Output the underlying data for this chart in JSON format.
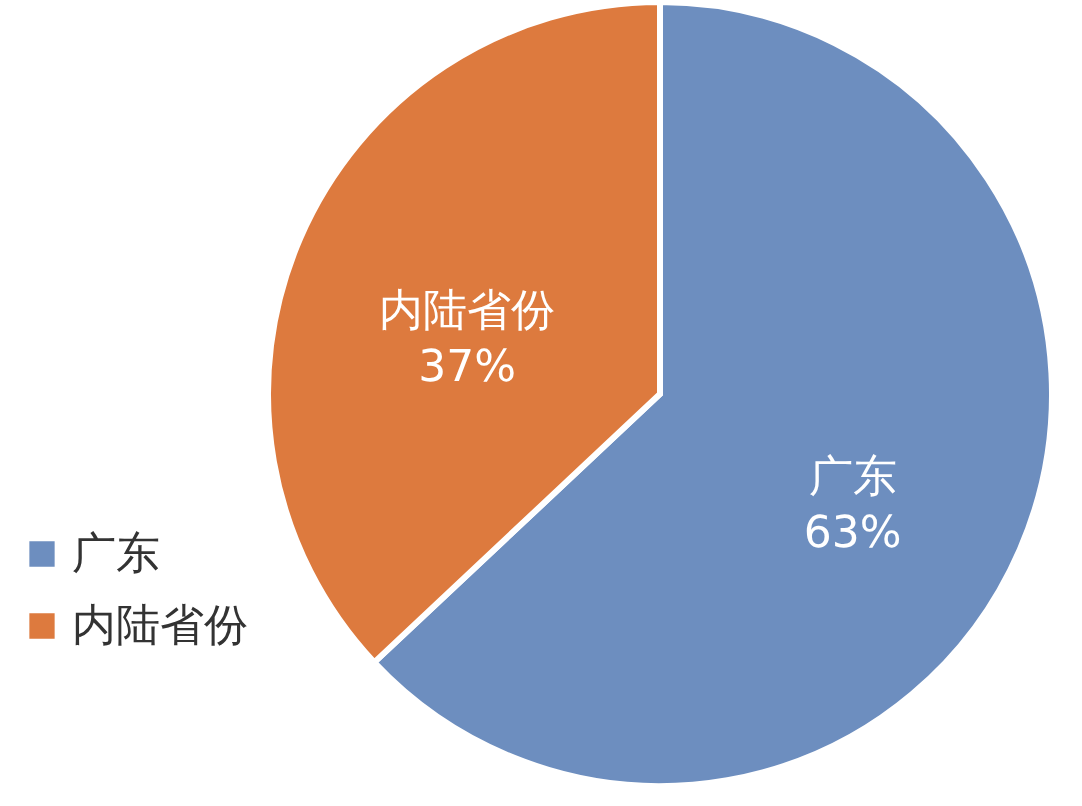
{
  "chart_data": {
    "type": "pie",
    "categories": [
      "广东",
      "内陆省份"
    ],
    "values": [
      63,
      37
    ],
    "colors": [
      "#6d8ebf",
      "#dd7a3e"
    ],
    "value_labels": [
      "63%",
      "37%"
    ],
    "legend": "bottom left"
  }
}
